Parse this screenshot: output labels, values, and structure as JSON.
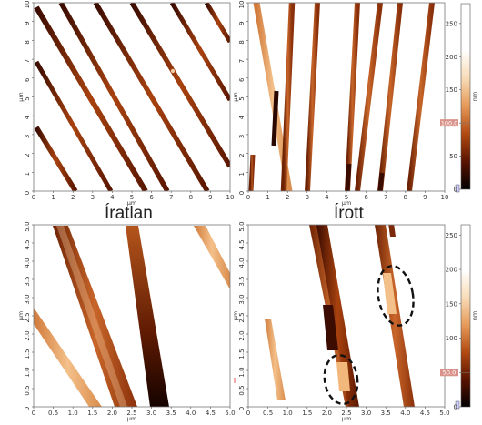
{
  "captions": {
    "left": "Íratlan",
    "right": "Írott"
  },
  "axis_unit": "µm",
  "height_unit": "nm",
  "panels": [
    {
      "id": "top-left",
      "xticks": [
        "0",
        "1",
        "2",
        "3",
        "4",
        "5",
        "6",
        "7",
        "8",
        "9",
        "10"
      ],
      "yticks": [
        "0",
        "1",
        "2",
        "3",
        "4",
        "5",
        "6",
        "7",
        "8",
        "9",
        "10"
      ],
      "xmax": 10,
      "ymax": 10
    },
    {
      "id": "top-right",
      "xticks": [
        "0",
        "1",
        "2",
        "3",
        "4",
        "5",
        "6",
        "7",
        "8",
        "9",
        "10"
      ],
      "yticks": [
        "0",
        "1",
        "2",
        "3",
        "4",
        "5",
        "6",
        "7",
        "8",
        "9",
        "10"
      ],
      "xmax": 10,
      "ymax": 10
    },
    {
      "id": "bottom-left",
      "xticks": [
        "0",
        "0.5",
        "1.0",
        "1.5",
        "2.0",
        "2.5",
        "3.0",
        "3.5",
        "4.0",
        "4.5",
        "5.0"
      ],
      "yticks": [
        "0",
        "0.5",
        "1.0",
        "1.5",
        "2.0",
        "2.5",
        "3.0",
        "3.5",
        "4.0",
        "4.5",
        "5.0"
      ],
      "xmax": 5,
      "ymax": 5
    },
    {
      "id": "bottom-right",
      "xticks": [
        "0",
        "0.5",
        "1.0",
        "1.5",
        "2.0",
        "2.5",
        "3.0",
        "3.5",
        "4.0",
        "4.5",
        "5.0"
      ],
      "yticks": [
        "0",
        "0.5",
        "1.0",
        "1.5",
        "2.0",
        "2.5",
        "3.0",
        "3.5",
        "4.0",
        "4.5",
        "5.0"
      ],
      "xmax": 5,
      "ymax": 5
    }
  ],
  "colorbars": [
    {
      "id": "top",
      "ticks": [
        "0",
        "50",
        "100",
        "150",
        "200",
        "250"
      ],
      "max": 280,
      "marker_label": "100.0",
      "marker_value": 100
    },
    {
      "id": "bottom",
      "ticks": [
        "0",
        "50",
        "100",
        "150",
        "200",
        "250"
      ],
      "max": 265,
      "marker_label": "50.0",
      "marker_value": 50
    }
  ],
  "colors": {
    "stripe_dark": "#1e0500",
    "stripe_mid": "#9a3a10",
    "stripe_light": "#f2b77a",
    "badge": "#d9928a"
  }
}
